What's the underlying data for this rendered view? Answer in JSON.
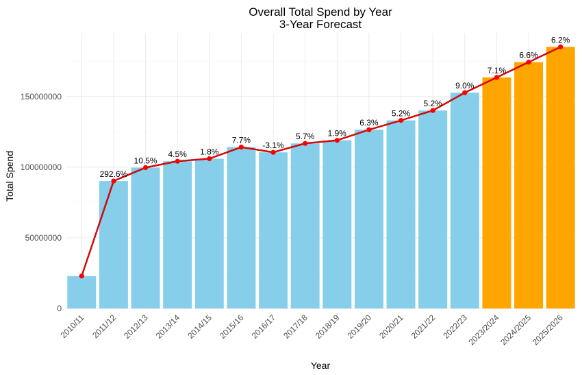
{
  "chart_data": {
    "type": "bar",
    "title": "Overall Total Spend by Year",
    "subtitle": "3-Year Forecast",
    "xlabel": "Year",
    "ylabel": "Total Spend",
    "categories": [
      "2010/11",
      "2011/12",
      "2012/13",
      "2013/14",
      "2014/15",
      "2015/16",
      "2016/17",
      "2017/18",
      "2018/19",
      "2019/20",
      "2020/21",
      "2021/22",
      "2022/23",
      "2023/2024",
      "2024/2025",
      "2025/2026"
    ],
    "values": [
      23000000,
      90200000,
      99700000,
      104200000,
      106000000,
      114200000,
      110500000,
      116800000,
      119000000,
      126500000,
      133100000,
      140100000,
      152700000,
      163500000,
      174300000,
      185100000
    ],
    "forecast": [
      false,
      false,
      false,
      false,
      false,
      false,
      false,
      false,
      false,
      false,
      false,
      false,
      false,
      true,
      true,
      true
    ],
    "growth_labels": [
      "",
      "292.6%",
      "10.5%",
      "4.5%",
      "1.8%",
      "7.7%",
      "-3.1%",
      "5.7%",
      "1.9%",
      "6.3%",
      "5.2%",
      "5.2%",
      "9.0%",
      "7.1%",
      "6.6%",
      "6.2%"
    ],
    "line_values": [
      23000000,
      90200000,
      99700000,
      104200000,
      106000000,
      114200000,
      110500000,
      116800000,
      119000000,
      126500000,
      133100000,
      140100000,
      152700000,
      163500000,
      174300000,
      185100000
    ],
    "y_ticks": [
      0,
      50000000,
      100000000,
      150000000
    ],
    "y_tick_labels": [
      "0",
      "50000000",
      "100000000",
      "150000000"
    ],
    "ylim": [
      0,
      195000000
    ],
    "grid": true,
    "legend": "none",
    "colors": {
      "actual": "#87CEEB",
      "forecast": "#FFA500",
      "line": "#FF0000",
      "line_dark": "#8B0000"
    }
  }
}
